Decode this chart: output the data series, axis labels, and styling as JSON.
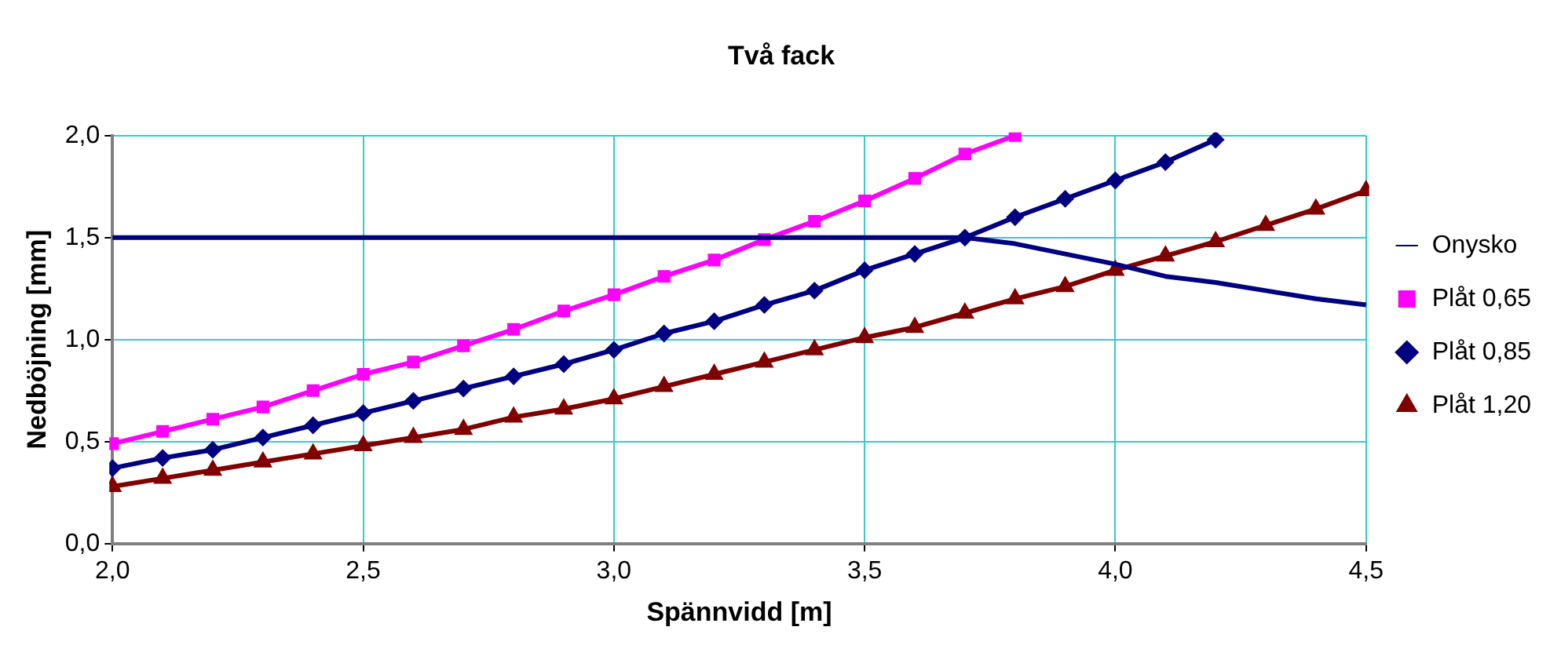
{
  "chart_data": {
    "type": "line",
    "title": "Två fack",
    "xlabel": "Spännvidd [m]",
    "ylabel": "Nedböjning [mm]",
    "x": [
      2.0,
      2.1,
      2.2,
      2.3,
      2.4,
      2.5,
      2.6,
      2.7,
      2.8,
      2.9,
      3.0,
      3.1,
      3.2,
      3.3,
      3.4,
      3.5,
      3.6,
      3.7,
      3.8,
      3.9,
      4.0,
      4.1,
      4.2,
      4.3,
      4.4,
      4.5
    ],
    "series": [
      {
        "name": "Onysko",
        "color": "#000080",
        "marker": "none",
        "values": [
          1.5,
          1.5,
          1.5,
          1.5,
          1.5,
          1.5,
          1.5,
          1.5,
          1.5,
          1.5,
          1.5,
          1.5,
          1.5,
          1.5,
          1.5,
          1.5,
          1.5,
          1.5,
          1.47,
          1.42,
          1.37,
          1.31,
          1.28,
          1.24,
          1.2,
          1.17
        ]
      },
      {
        "name": "Plåt 0,65",
        "color": "#ff00ff",
        "marker": "square",
        "values": [
          0.49,
          0.55,
          0.61,
          0.67,
          0.75,
          0.83,
          0.89,
          0.97,
          1.05,
          1.14,
          1.22,
          1.31,
          1.39,
          1.49,
          1.58,
          1.68,
          1.79,
          1.91,
          2.0,
          null,
          null,
          null,
          null,
          null,
          null,
          null
        ]
      },
      {
        "name": "Plåt 0,85",
        "color": "#000080",
        "marker": "diamond",
        "values": [
          0.37,
          0.42,
          0.46,
          0.52,
          0.58,
          0.64,
          0.7,
          0.76,
          0.82,
          0.88,
          0.95,
          1.03,
          1.09,
          1.17,
          1.24,
          1.34,
          1.42,
          1.5,
          1.6,
          1.69,
          1.78,
          1.87,
          1.98,
          null,
          null,
          null
        ]
      },
      {
        "name": "Plåt 1,20",
        "color": "#800000",
        "marker": "triangle",
        "values": [
          0.28,
          0.32,
          0.36,
          0.4,
          0.44,
          0.48,
          0.52,
          0.56,
          0.62,
          0.66,
          0.71,
          0.77,
          0.83,
          0.89,
          0.95,
          1.01,
          1.06,
          1.13,
          1.2,
          1.26,
          1.34,
          1.41,
          1.48,
          1.56,
          1.64,
          1.73
        ]
      }
    ],
    "xlim": [
      2.0,
      4.5
    ],
    "xticks": [
      {
        "value": 2.0,
        "label": "2,0"
      },
      {
        "value": 2.5,
        "label": "2,5"
      },
      {
        "value": 3.0,
        "label": "3,0"
      },
      {
        "value": 3.5,
        "label": "3,5"
      },
      {
        "value": 4.0,
        "label": "4,0"
      },
      {
        "value": 4.5,
        "label": "4,5"
      }
    ],
    "ylim": [
      0,
      2.0
    ],
    "yticks": [
      {
        "value": 0,
        "label": "0,0"
      },
      {
        "value": 0.5,
        "label": "0,5"
      },
      {
        "value": 1.0,
        "label": "1,0"
      },
      {
        "value": 1.5,
        "label": "1,5"
      },
      {
        "value": 2.0,
        "label": "2,0"
      }
    ],
    "grid": true,
    "legend": "right",
    "line_style": "solid"
  }
}
